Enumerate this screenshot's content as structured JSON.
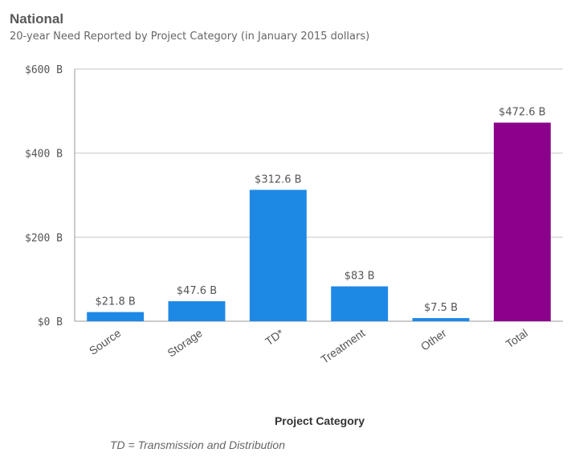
{
  "chart_data": {
    "type": "bar",
    "title": "National",
    "subtitle": "20-year Need Reported by Project Category (in January 2015 dollars)",
    "xlabel": "Project Category",
    "ylabel": "",
    "categories": [
      "Source",
      "Storage",
      "TD*",
      "Treatment",
      "Other",
      "Total"
    ],
    "values": [
      21.8,
      47.6,
      312.6,
      83,
      7.5,
      472.6
    ],
    "data_labels": [
      "$21.8 B",
      "$47.6 B",
      "$312.6 B",
      "$83 B",
      "$7.5 B",
      "$472.6 B"
    ],
    "yticks": [
      0,
      200,
      400,
      600
    ],
    "ytick_labels": [
      "$0 B",
      "$200 B",
      "$400 B",
      "$600 B"
    ],
    "ylim": [
      0,
      600
    ],
    "grid": true,
    "legend": "none",
    "colors": {
      "default_bar": "#1e88e5",
      "total_bar": "#8b008b",
      "grid": "#d9d9d9",
      "axis": "#999999",
      "label_text": "#555555"
    },
    "footnote": "TD = Transmission and Distribution"
  }
}
